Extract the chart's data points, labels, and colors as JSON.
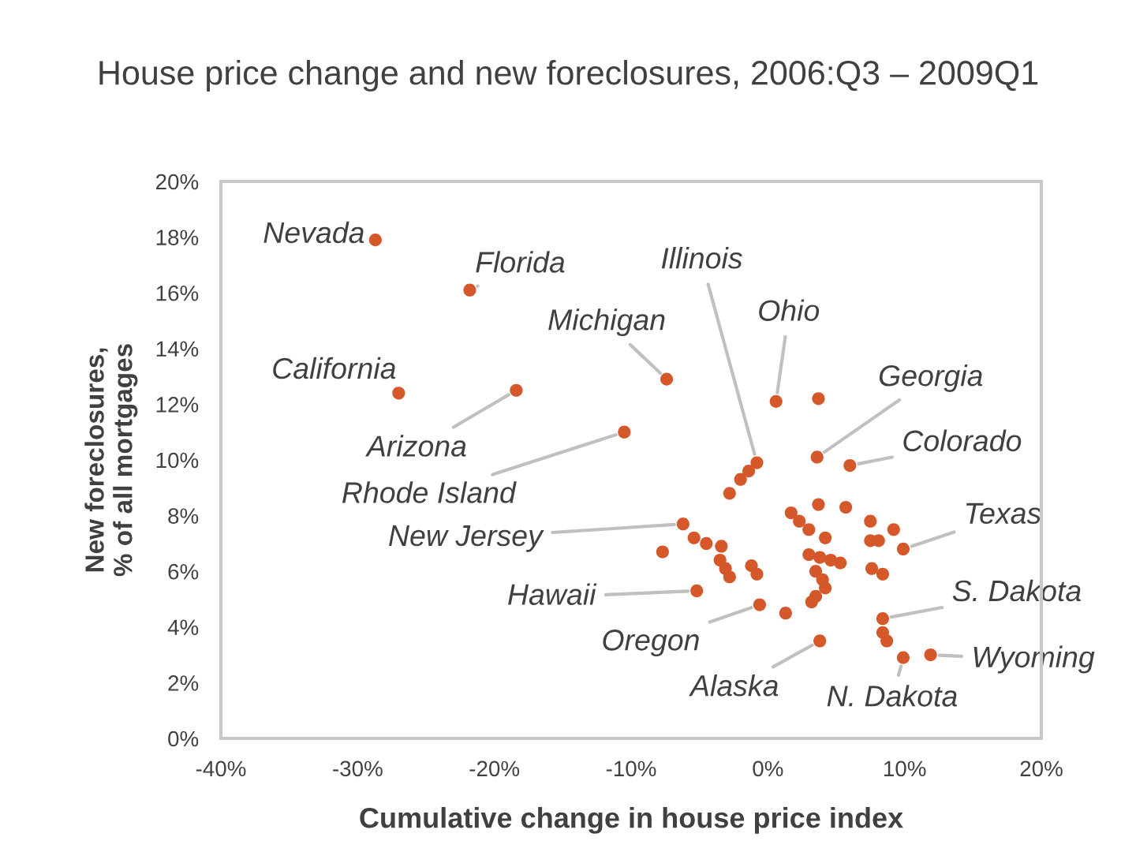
{
  "chart_data": {
    "type": "scatter",
    "title": "House price change and new foreclosures, 2006:Q3 – 2009Q1",
    "xlabel": "Cumulative change in house price index",
    "ylabel": "New foreclosures,\n% of all mortgages",
    "marker": "circle",
    "x": [
      -28.7,
      -21.8,
      -27.0,
      -18.4,
      -10.5,
      -7.4,
      0.6,
      3.7,
      -0.8,
      -1.4,
      -2.0,
      3.6,
      6.0,
      -2.8,
      3.7,
      5.7,
      1.7,
      2.3,
      -6.2,
      7.5,
      9.2,
      3.0,
      4.2,
      -5.4,
      -4.5,
      -3.4,
      -7.7,
      7.5,
      8.1,
      9.9,
      3.0,
      3.8,
      4.6,
      5.3,
      -3.5,
      -3.1,
      -2.8,
      -1.2,
      -0.8,
      7.6,
      8.4,
      3.5,
      4.0,
      4.2,
      3.5,
      -5.2,
      -0.6,
      1.3,
      3.2,
      8.4,
      8.4,
      8.7,
      3.8,
      9.9,
      11.9
    ],
    "series": [
      {
        "color": "#d4582a",
        "values": [
          17.9,
          16.1,
          12.4,
          12.5,
          11.0,
          12.9,
          12.1,
          12.2,
          9.9,
          9.6,
          9.3,
          10.1,
          9.8,
          8.8,
          8.4,
          8.3,
          8.1,
          7.8,
          7.7,
          7.8,
          7.5,
          7.5,
          7.2,
          7.2,
          7.0,
          6.9,
          6.7,
          7.1,
          7.1,
          6.8,
          6.6,
          6.5,
          6.4,
          6.3,
          6.4,
          6.1,
          5.8,
          6.2,
          5.9,
          6.1,
          5.9,
          6.0,
          5.7,
          5.4,
          5.1,
          5.3,
          4.8,
          4.5,
          4.9,
          4.3,
          3.8,
          3.5,
          3.5,
          2.9,
          3.0
        ]
      }
    ],
    "xlim": [
      -40,
      20
    ],
    "ylim": [
      0,
      20
    ],
    "xticks": [
      {
        "value": -40,
        "label": "-40%"
      },
      {
        "value": -30,
        "label": "-30%"
      },
      {
        "value": -20,
        "label": "-20%"
      },
      {
        "value": -10,
        "label": "-10%"
      },
      {
        "value": 0,
        "label": "0%"
      },
      {
        "value": 10,
        "label": "10%"
      },
      {
        "value": 20,
        "label": "20%"
      }
    ],
    "yticks": [
      {
        "value": 0,
        "label": "0%"
      },
      {
        "value": 2,
        "label": "2%"
      },
      {
        "value": 4,
        "label": "4%"
      },
      {
        "value": 6,
        "label": "6%"
      },
      {
        "value": 8,
        "label": "8%"
      },
      {
        "value": 10,
        "label": "10%"
      },
      {
        "value": 12,
        "label": "12%"
      },
      {
        "value": 14,
        "label": "14%"
      },
      {
        "value": 16,
        "label": "16%"
      },
      {
        "value": 18,
        "label": "18%"
      },
      {
        "value": 20,
        "label": "20%"
      }
    ],
    "annotations": [
      {
        "text": "Nevada",
        "x": -28.7,
        "y": 17.9
      },
      {
        "text": "Florida",
        "x": -21.8,
        "y": 16.1
      },
      {
        "text": "California",
        "x": -27.0,
        "y": 12.4
      },
      {
        "text": "Arizona",
        "x": -18.4,
        "y": 12.5
      },
      {
        "text": "Rhode Island",
        "x": -10.5,
        "y": 11.0
      },
      {
        "text": "Michigan",
        "x": -7.4,
        "y": 12.9
      },
      {
        "text": "Illinois",
        "x": -0.8,
        "y": 9.9
      },
      {
        "text": "Ohio",
        "x": 0.6,
        "y": 12.1
      },
      {
        "text": "Georgia",
        "x": 3.6,
        "y": 10.1
      },
      {
        "text": "Colorado",
        "x": 6.0,
        "y": 9.8
      },
      {
        "text": "New Jersey",
        "x": -6.2,
        "y": 7.7
      },
      {
        "text": "Texas",
        "x": 9.9,
        "y": 6.8
      },
      {
        "text": "Hawaii",
        "x": -5.2,
        "y": 5.3
      },
      {
        "text": "S. Dakota",
        "x": 8.4,
        "y": 4.3
      },
      {
        "text": "Oregon",
        "x": -0.6,
        "y": 4.8
      },
      {
        "text": "Wyoming",
        "x": 11.9,
        "y": 3.0
      },
      {
        "text": "Alaska",
        "x": 3.8,
        "y": 3.5
      },
      {
        "text": "N. Dakota",
        "x": 9.9,
        "y": 2.9
      }
    ]
  }
}
